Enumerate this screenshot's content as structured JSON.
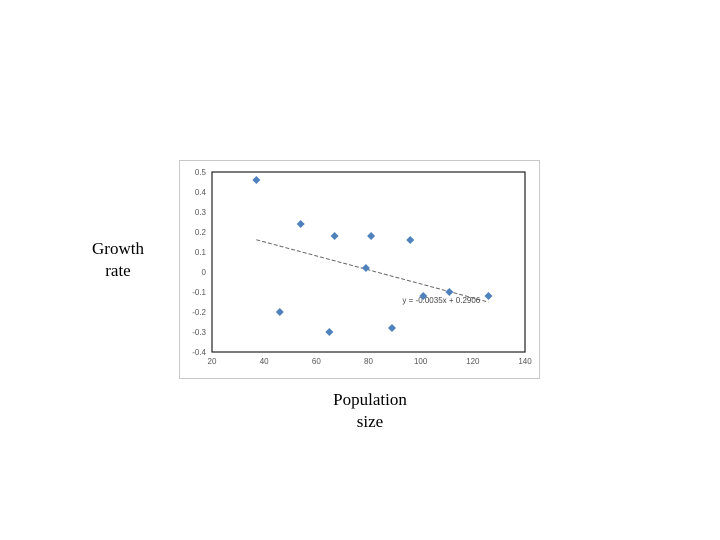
{
  "labels": {
    "y_line1": "Growth",
    "y_line2": "rate",
    "x_line1": "Population",
    "x_line2": "size"
  },
  "chart_data": {
    "type": "scatter",
    "x": [
      37,
      46,
      54,
      65,
      67,
      81,
      79,
      89,
      96,
      101,
      111,
      126
    ],
    "y": [
      0.46,
      -0.2,
      0.24,
      -0.3,
      0.18,
      0.18,
      0.02,
      -0.28,
      0.16,
      -0.12,
      -0.1,
      -0.12
    ],
    "xlim": [
      20,
      140
    ],
    "ylim": [
      -0.4,
      0.5
    ],
    "xticks": [
      "20",
      "40",
      "60",
      "80",
      "100",
      "120",
      "140"
    ],
    "yticks": [
      "0.5",
      "0.4",
      "0.3",
      "0.2",
      "0.1",
      "0",
      "-0.1",
      "-0.2",
      "-0.3",
      "-0.4"
    ],
    "trendline": {
      "slope": -0.0035,
      "intercept": 0.2906,
      "x_range": [
        37,
        126
      ],
      "label": "y = -0.0035x + 0.2906"
    },
    "colors": {
      "marker": "#4f81bd",
      "trendline": "#666666",
      "frame": "#c8c8c8"
    },
    "grid": false
  }
}
